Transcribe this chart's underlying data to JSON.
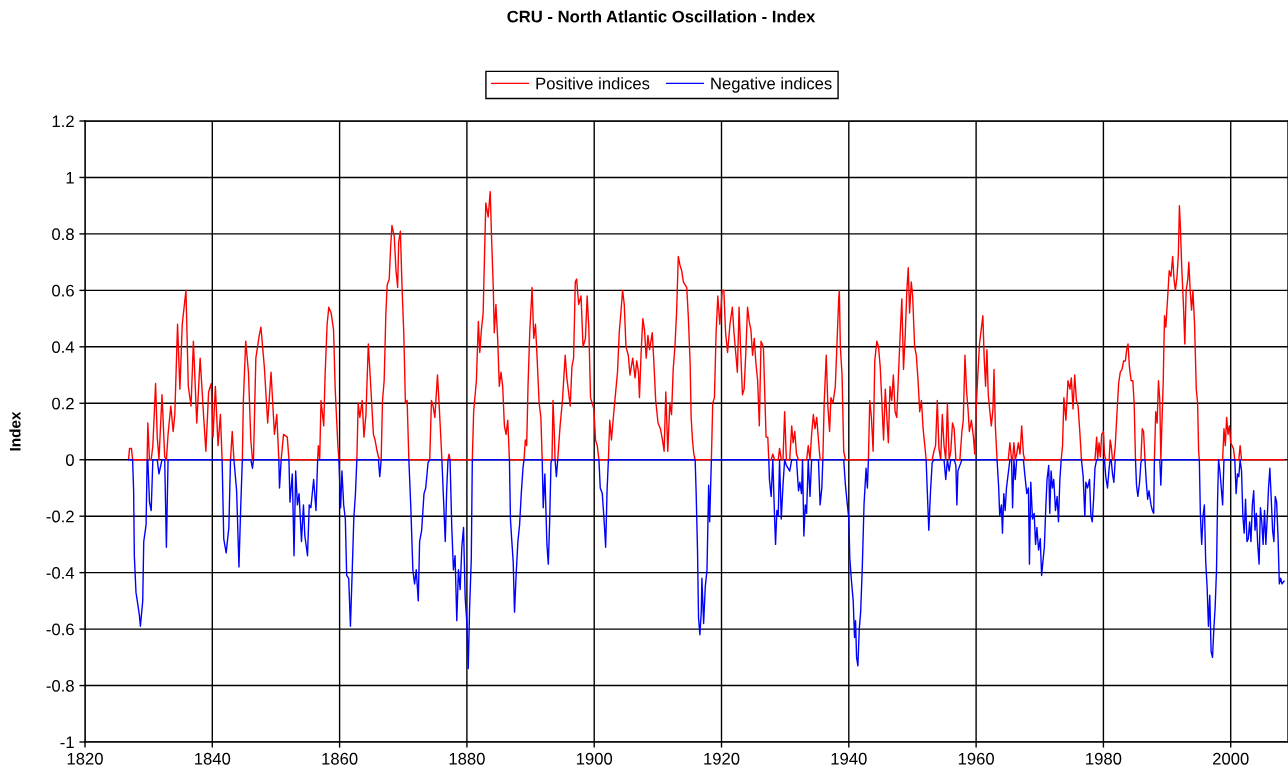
{
  "chart_data": {
    "type": "line",
    "title": "CRU - North Atlantic Oscillation - Index",
    "ylabel": "Index",
    "xlim": [
      1820,
      2009
    ],
    "xticks": [
      1820,
      1840,
      1860,
      1880,
      1900,
      1920,
      1940,
      1960,
      1980,
      2000
    ],
    "ylim": [
      -1,
      1.2
    ],
    "yticks": [
      -1,
      -0.8,
      -0.6,
      -0.4,
      -0.2,
      0,
      0.2,
      0.4,
      0.6,
      0.8,
      1,
      1.2
    ],
    "grid": true,
    "legend": "top",
    "x": [
      1826.84,
      1827.0,
      1827.3,
      1827.48,
      1827.64,
      1827.75,
      1828.01,
      1828.54,
      1828.7,
      1829.07,
      1829.23,
      1829.6,
      1829.76,
      1829.87,
      1830.13,
      1830.4,
      1830.66,
      1831.09,
      1831.35,
      1831.62,
      1832.1,
      1832.52,
      1832.79,
      1833.05,
      1833.48,
      1833.85,
      1834.11,
      1834.54,
      1834.91,
      1835.28,
      1835.86,
      1836.23,
      1836.66,
      1837.03,
      1837.56,
      1838.09,
      1838.62,
      1838.99,
      1839.42,
      1839.84,
      1840.11,
      1840.48,
      1840.9,
      1841.27,
      1841.54,
      1841.8,
      1842.18,
      1842.6,
      1842.86,
      1843.13,
      1843.4,
      1843.82,
      1844.19,
      1844.46,
      1844.72,
      1844.88,
      1845.25,
      1845.68,
      1846.05,
      1846.31,
      1846.47,
      1846.84,
      1847.37,
      1847.64,
      1848.17,
      1848.7,
      1849.23,
      1849.76,
      1850.13,
      1850.45,
      1850.56,
      1850.82,
      1851.19,
      1851.78,
      1852.04,
      1852.2,
      1852.57,
      1852.84,
      1853.1,
      1853.37,
      1853.63,
      1854.01,
      1854.32,
      1854.54,
      1854.96,
      1855.23,
      1855.49,
      1855.92,
      1856.29,
      1856.55,
      1856.66,
      1856.87,
      1857.08,
      1857.51,
      1857.72,
      1858.04,
      1858.3,
      1858.67,
      1859.05,
      1859.31,
      1859.58,
      1859.73,
      1859.89,
      1860.16,
      1860.37,
      1860.64,
      1860.9,
      1861.11,
      1861.43,
      1861.7,
      1861.96,
      1862.23,
      1862.49,
      1862.71,
      1862.92,
      1863.18,
      1863.55,
      1863.82,
      1864.14,
      1864.51,
      1864.77,
      1865.04,
      1865.31,
      1865.57,
      1865.89,
      1866.1,
      1866.31,
      1866.53,
      1866.74,
      1867.0,
      1867.27,
      1867.48,
      1867.8,
      1868.01,
      1868.22,
      1868.59,
      1868.86,
      1869.12,
      1869.28,
      1869.55,
      1869.81,
      1870.08,
      1870.34,
      1870.61,
      1870.88,
      1871.19,
      1871.51,
      1871.78,
      1872.04,
      1872.36,
      1872.57,
      1872.89,
      1873.26,
      1873.53,
      1873.9,
      1874.16,
      1874.43,
      1874.69,
      1874.96,
      1875.38,
      1875.65,
      1875.92,
      1876.07,
      1876.29,
      1876.6,
      1876.82,
      1877.03,
      1877.19,
      1877.35,
      1877.61,
      1877.88,
      1878.14,
      1878.41,
      1878.67,
      1878.94,
      1879.2,
      1879.47,
      1879.73,
      1880.0,
      1880.21,
      1880.42,
      1880.69,
      1880.85,
      1881.06,
      1881.49,
      1881.8,
      1882.02,
      1882.28,
      1882.55,
      1882.71,
      1882.97,
      1883.34,
      1883.66,
      1883.87,
      1884.14,
      1884.3,
      1884.56,
      1884.83,
      1885.09,
      1885.36,
      1885.62,
      1885.89,
      1886.15,
      1886.42,
      1886.68,
      1886.84,
      1887.06,
      1887.27,
      1887.48,
      1887.75,
      1888.01,
      1888.28,
      1888.54,
      1888.81,
      1888.97,
      1889.18,
      1889.39,
      1889.6,
      1889.87,
      1890.24,
      1890.5,
      1890.77,
      1891.03,
      1891.35,
      1891.62,
      1891.83,
      1891.99,
      1892.25,
      1892.57,
      1892.79,
      1893.0,
      1893.21,
      1893.37,
      1893.53,
      1893.74,
      1893.85,
      1894.06,
      1894.27,
      1894.64,
      1895.01,
      1895.44,
      1895.7,
      1895.97,
      1896.23,
      1896.5,
      1896.76,
      1897.03,
      1897.24,
      1897.56,
      1897.93,
      1898.25,
      1898.62,
      1898.89,
      1899.15,
      1899.42,
      1899.68,
      1899.95,
      1900.21,
      1900.48,
      1900.74,
      1900.95,
      1901.27,
      1901.54,
      1901.8,
      1902.02,
      1902.23,
      1902.44,
      1902.71,
      1902.97,
      1903.29,
      1903.66,
      1903.93,
      1904.19,
      1904.46,
      1904.72,
      1904.99,
      1905.36,
      1905.62,
      1906.05,
      1906.42,
      1906.68,
      1906.95,
      1907.11,
      1907.37,
      1907.64,
      1907.9,
      1908.17,
      1908.44,
      1908.7,
      1909.12,
      1909.34,
      1909.66,
      1910.03,
      1910.4,
      1910.72,
      1910.98,
      1911.25,
      1911.56,
      1911.88,
      1912.15,
      1912.41,
      1912.68,
      1912.94,
      1913.21,
      1913.47,
      1913.74,
      1914.01,
      1914.54,
      1914.8,
      1915.07,
      1915.23,
      1915.44,
      1915.65,
      1915.86,
      1916.02,
      1916.23,
      1916.39,
      1916.6,
      1916.82,
      1916.92,
      1917.19,
      1917.45,
      1917.72,
      1917.98,
      1918.14,
      1918.41,
      1918.62,
      1918.89,
      1919.15,
      1919.42,
      1919.73,
      1920.11,
      1920.37,
      1920.64,
      1920.95,
      1921.33,
      1921.7,
      1921.96,
      1922.23,
      1922.49,
      1922.76,
      1923.02,
      1923.29,
      1923.55,
      1923.82,
      1924.09,
      1924.35,
      1924.62,
      1924.88,
      1925.15,
      1925.41,
      1925.68,
      1925.94,
      1926.21,
      1926.58,
      1926.84,
      1927.0,
      1927.27,
      1927.43,
      1927.53,
      1927.8,
      1928.06,
      1928.33,
      1928.49,
      1928.7,
      1928.91,
      1929.12,
      1929.39,
      1929.66,
      1929.92,
      1930.19,
      1930.45,
      1930.72,
      1931.03,
      1931.25,
      1931.51,
      1931.78,
      1932.1,
      1932.31,
      1932.57,
      1932.73,
      1932.94,
      1933.16,
      1933.37,
      1933.63,
      1933.9,
      1934.16,
      1934.43,
      1934.69,
      1934.96,
      1935.23,
      1935.49,
      1935.76,
      1935.92,
      1936.13,
      1936.45,
      1936.71,
      1936.98,
      1937.19,
      1937.51,
      1937.88,
      1938.14,
      1938.41,
      1938.51,
      1938.67,
      1938.94,
      1939.2,
      1939.47,
      1939.73,
      1940.0,
      1940.16,
      1940.42,
      1940.69,
      1940.9,
      1941.06,
      1941.22,
      1941.43,
      1941.64,
      1941.86,
      1942.12,
      1942.39,
      1942.71,
      1942.92,
      1943.08,
      1943.29,
      1943.55,
      1943.82,
      1944.08,
      1944.4,
      1944.67,
      1944.93,
      1945.2,
      1945.46,
      1945.73,
      1946.21,
      1946.47,
      1946.74,
      1947.0,
      1947.27,
      1947.53,
      1947.8,
      1948.06,
      1948.33,
      1948.59,
      1948.86,
      1949.12,
      1949.34,
      1949.55,
      1949.81,
      1950.03,
      1950.34,
      1950.61,
      1950.88,
      1951.14,
      1951.41,
      1951.67,
      1951.94,
      1952.15,
      1952.31,
      1952.57,
      1952.84,
      1953.1,
      1953.37,
      1953.63,
      1953.9,
      1954.16,
      1954.43,
      1954.69,
      1954.96,
      1955.23,
      1955.49,
      1955.76,
      1956.02,
      1956.29,
      1956.55,
      1956.82,
      1956.98,
      1957.14,
      1957.45,
      1957.77,
      1957.98,
      1958.25,
      1958.51,
      1958.73,
      1958.94,
      1959.26,
      1959.58,
      1959.79,
      1960.0,
      1960.27,
      1960.53,
      1960.8,
      1961.06,
      1961.27,
      1961.49,
      1961.7,
      1961.91,
      1962.12,
      1962.39,
      1962.65,
      1962.81,
      1963.02,
      1963.29,
      1963.55,
      1963.71,
      1963.98,
      1964.14,
      1964.35,
      1964.56,
      1964.77,
      1965.04,
      1965.31,
      1965.57,
      1965.73,
      1965.94,
      1966.15,
      1966.37,
      1966.63,
      1966.9,
      1967.16,
      1967.43,
      1967.64,
      1967.96,
      1968.22,
      1968.38,
      1968.59,
      1968.86,
      1969.12,
      1969.34,
      1969.55,
      1969.81,
      1970.08,
      1970.29,
      1970.5,
      1970.72,
      1970.93,
      1971.14,
      1971.41,
      1971.57,
      1971.78,
      1971.99,
      1972.2,
      1972.47,
      1972.73,
      1972.94,
      1973.16,
      1973.37,
      1973.58,
      1973.79,
      1974.11,
      1974.43,
      1974.75,
      1974.96,
      1975.23,
      1975.49,
      1975.76,
      1976.02,
      1976.29,
      1976.55,
      1976.82,
      1977.08,
      1977.24,
      1977.51,
      1977.82,
      1978.04,
      1978.25,
      1978.46,
      1978.67,
      1978.94,
      1979.1,
      1979.31,
      1979.52,
      1979.73,
      1980.0,
      1980.16,
      1980.37,
      1980.64,
      1980.9,
      1981.06,
      1981.22,
      1981.43,
      1981.64,
      1981.86,
      1982.12,
      1982.39,
      1982.65,
      1982.92,
      1983.18,
      1983.45,
      1983.66,
      1983.87,
      1984.08,
      1984.35,
      1984.62,
      1984.83,
      1985.04,
      1985.2,
      1985.41,
      1985.68,
      1985.89,
      1986.1,
      1986.31,
      1986.53,
      1986.74,
      1986.95,
      1987.16,
      1987.48,
      1987.69,
      1987.9,
      1988.01,
      1988.22,
      1988.44,
      1988.65,
      1988.86,
      1989.02,
      1989.18,
      1989.39,
      1989.6,
      1989.81,
      1990.08,
      1990.34,
      1990.61,
      1990.88,
      1991.09,
      1991.3,
      1991.57,
      1991.78,
      1991.94,
      1992.1,
      1992.31,
      1992.57,
      1992.79,
      1993.0,
      1993.26,
      1993.42,
      1993.63,
      1993.85,
      1994.06,
      1994.32,
      1994.59,
      1994.8,
      1994.96,
      1995.07,
      1995.23,
      1995.44,
      1995.65,
      1995.86,
      1996.07,
      1996.29,
      1996.5,
      1996.71,
      1996.92,
      1997.14,
      1997.35,
      1997.56,
      1997.77,
      1997.93,
      1998.09,
      1998.3,
      1998.52,
      1998.73,
      1998.94,
      1999.15,
      1999.36,
      1999.58,
      1999.79,
      2000.0,
      2000.21,
      2000.42,
      2000.64,
      2000.85,
      2001.06,
      2001.27,
      2001.48,
      2001.7,
      2001.91,
      2002.12,
      2002.33,
      2002.55,
      2002.76,
      2002.97,
      2003.18,
      2003.4,
      2003.61,
      2003.82,
      2004.03,
      2004.24,
      2004.46,
      2004.67,
      2004.88,
      2005.09,
      2005.31,
      2005.52,
      2005.73,
      2005.94,
      2006.15,
      2006.37,
      2006.58,
      2006.79,
      2007.0,
      2007.21,
      2007.43,
      2007.64,
      2007.85,
      2008.06,
      2008.38
    ],
    "series": [
      {
        "name": "Positive indices",
        "color": "#ff0000",
        "values": [
          0,
          0.04,
          0.04,
          0,
          0,
          0,
          0,
          0,
          0,
          0,
          0,
          0,
          0,
          0.13,
          0,
          0,
          0.05,
          0.27,
          0.08,
          0,
          0.23,
          0.01,
          0,
          0.09,
          0.19,
          0.1,
          0.16,
          0.48,
          0.25,
          0.48,
          0.6,
          0.26,
          0.19,
          0.42,
          0.13,
          0.36,
          0.16,
          0.03,
          0.24,
          0.27,
          0.08,
          0.26,
          0.05,
          0.16,
          0,
          0,
          0,
          0,
          0,
          0.1,
          0,
          0,
          0,
          0,
          0,
          0.21,
          0.42,
          0.31,
          0.07,
          0,
          0,
          0.36,
          0.44,
          0.47,
          0.33,
          0.13,
          0.31,
          0.09,
          0.16,
          0,
          0,
          0,
          0.09,
          0.08,
          0,
          0,
          0,
          0,
          0,
          0,
          0,
          0,
          0,
          0,
          0,
          0,
          0,
          0,
          0,
          0,
          0.05,
          0,
          0.21,
          0.12,
          0.3,
          0.48,
          0.54,
          0.52,
          0.46,
          0.25,
          0.12,
          0.05,
          0,
          0,
          0,
          0,
          0,
          0,
          0,
          0,
          0,
          0,
          0,
          0,
          0.2,
          0.15,
          0.21,
          0.08,
          0.16,
          0.41,
          0.31,
          0.2,
          0.09,
          0.07,
          0.03,
          0.01,
          0,
          0,
          0.21,
          0.28,
          0.52,
          0.62,
          0.64,
          0.75,
          0.83,
          0.79,
          0.67,
          0.61,
          0.77,
          0.81,
          0.61,
          0.45,
          0.2,
          0.21,
          0,
          0,
          0,
          0,
          0,
          0,
          0,
          0,
          0,
          0,
          0,
          0,
          0.21,
          0.19,
          0.15,
          0.3,
          0.19,
          0.07,
          0,
          0,
          0,
          0,
          0,
          0.02,
          0,
          0,
          0,
          0,
          0,
          0,
          0,
          0,
          0,
          0,
          0,
          0,
          0,
          0,
          0,
          0.17,
          0.28,
          0.49,
          0.38,
          0.46,
          0.52,
          0.67,
          0.91,
          0.86,
          0.95,
          0.79,
          0.61,
          0.45,
          0.55,
          0.43,
          0.26,
          0.31,
          0.26,
          0.12,
          0.09,
          0.14,
          0,
          0,
          0,
          0,
          0,
          0,
          0,
          0,
          0,
          0,
          0,
          0.07,
          0.05,
          0.26,
          0.45,
          0.61,
          0.43,
          0.48,
          0.36,
          0.2,
          0.15,
          0,
          0,
          0,
          0,
          0,
          0,
          0,
          0,
          0.21,
          0.09,
          0,
          0,
          0,
          0.12,
          0.21,
          0.37,
          0.29,
          0.24,
          0.19,
          0.33,
          0.36,
          0.63,
          0.64,
          0.55,
          0.58,
          0.4,
          0.43,
          0.58,
          0.47,
          0.22,
          0.2,
          0.18,
          0.07,
          0.05,
          0,
          0,
          0,
          0,
          0,
          0,
          0,
          0.14,
          0.07,
          0.14,
          0.22,
          0.31,
          0.45,
          0.52,
          0.6,
          0.55,
          0.4,
          0.37,
          0.3,
          0.36,
          0.29,
          0.35,
          0.31,
          0.22,
          0.38,
          0.5,
          0.46,
          0.36,
          0.44,
          0.39,
          0.45,
          0.36,
          0.21,
          0.13,
          0.11,
          0.07,
          0.03,
          0.24,
          0.03,
          0.2,
          0.16,
          0.32,
          0.4,
          0.52,
          0.72,
          0.69,
          0.67,
          0.63,
          0.61,
          0.5,
          0.34,
          0.15,
          0.07,
          0.02,
          0,
          0,
          0,
          0,
          0,
          0,
          0,
          0,
          0,
          0,
          0,
          0,
          0,
          0.2,
          0.22,
          0.45,
          0.58,
          0.48,
          0.6,
          0.6,
          0.45,
          0.38,
          0.48,
          0.54,
          0.45,
          0.38,
          0.31,
          0.54,
          0.38,
          0.23,
          0.25,
          0.38,
          0.54,
          0.49,
          0.46,
          0.37,
          0.43,
          0.34,
          0.28,
          0.12,
          0.42,
          0.4,
          0.2,
          0.08,
          0.08,
          0,
          0,
          0,
          0.02,
          0,
          0,
          0,
          0,
          0.04,
          0,
          0,
          0.17,
          0,
          0,
          0,
          0.12,
          0.06,
          0.1,
          0.02,
          0,
          0,
          0,
          0,
          0,
          0,
          0,
          0.05,
          0,
          0.09,
          0.16,
          0.11,
          0.15,
          0.07,
          0,
          0,
          0,
          0.2,
          0.37,
          0.19,
          0.1,
          0.22,
          0.2,
          0.26,
          0.41,
          0.57,
          0.6,
          0.4,
          0.3,
          0.03,
          0,
          0,
          0,
          0,
          0,
          0,
          0,
          0,
          0,
          0,
          0,
          0,
          0,
          0,
          0,
          0,
          0,
          0.21,
          0.15,
          0.03,
          0.35,
          0.42,
          0.4,
          0.33,
          0.2,
          0.07,
          0.25,
          0.06,
          0.26,
          0.21,
          0.3,
          0.17,
          0.15,
          0.3,
          0.44,
          0.57,
          0.32,
          0.44,
          0.6,
          0.68,
          0.52,
          0.63,
          0.58,
          0.4,
          0.37,
          0.28,
          0.17,
          0.21,
          0.11,
          0.05,
          0,
          0,
          0,
          0,
          0,
          0.03,
          0.05,
          0.21,
          0.04,
          0,
          0.16,
          0.05,
          0,
          0.2,
          0,
          0.03,
          0.13,
          0.11,
          0,
          0,
          0,
          0,
          0.1,
          0.14,
          0.37,
          0.24,
          0.18,
          0.1,
          0.14,
          0.08,
          0.02,
          0.18,
          0.3,
          0.41,
          0.46,
          0.51,
          0.36,
          0.26,
          0.39,
          0.23,
          0.18,
          0.12,
          0.18,
          0.32,
          0.12,
          0,
          0,
          0,
          0,
          0,
          0,
          0,
          0,
          0,
          0.06,
          0,
          0,
          0.06,
          0,
          0.02,
          0.06,
          0.02,
          0.12,
          0.02,
          0,
          0,
          0,
          0,
          0,
          0,
          0,
          0,
          0,
          0,
          0,
          0,
          0,
          0,
          0,
          0,
          0,
          0,
          0,
          0,
          0,
          0,
          0,
          0,
          0,
          0,
          0.05,
          0.22,
          0.14,
          0.28,
          0.25,
          0.29,
          0.18,
          0.3,
          0.21,
          0.19,
          0.1,
          0,
          0,
          0,
          0,
          0,
          0,
          0,
          0,
          0,
          0,
          0.08,
          0,
          0.06,
          0.01,
          0.09,
          0.1,
          0.02,
          0,
          0,
          0,
          0.07,
          0.05,
          0,
          0,
          0.05,
          0.16,
          0.27,
          0.31,
          0.32,
          0.35,
          0.35,
          0.39,
          0.41,
          0.33,
          0.28,
          0.28,
          0.2,
          0,
          0,
          0,
          0,
          0,
          0.11,
          0.1,
          0,
          0,
          0,
          0,
          0,
          0,
          0,
          0,
          0.17,
          0.13,
          0.28,
          0.21,
          0,
          0.12,
          0.27,
          0.51,
          0.47,
          0.57,
          0.67,
          0.65,
          0.72,
          0.64,
          0.6,
          0.65,
          0.73,
          0.9,
          0.82,
          0.68,
          0.55,
          0.41,
          0.6,
          0.64,
          0.7,
          0.6,
          0.53,
          0.6,
          0.48,
          0.25,
          0.2,
          0.03,
          0,
          0,
          0,
          0,
          0,
          0,
          0,
          0,
          0,
          0,
          0,
          0,
          0,
          0,
          0,
          0,
          0,
          0,
          0,
          0.11,
          0.05,
          0.15,
          0.09,
          0.12,
          0.06,
          0.05,
          0.04,
          0,
          0,
          0,
          0,
          0.05,
          0,
          0,
          0,
          0,
          0,
          0,
          0,
          0,
          0,
          0,
          0,
          0,
          0,
          0,
          0,
          0,
          0,
          0,
          0,
          0,
          0,
          0,
          0,
          0,
          0,
          0,
          0,
          0,
          0,
          0,
          0,
          0
        ]
      },
      {
        "name": "Negative indices",
        "color": "#0000ff",
        "values": [
          0,
          0,
          0,
          0,
          -0.11,
          -0.34,
          -0.47,
          -0.55,
          -0.59,
          -0.5,
          -0.29,
          -0.23,
          0,
          0,
          -0.15,
          -0.18,
          0,
          0,
          0,
          -0.05,
          0,
          0,
          -0.31,
          0,
          0,
          0,
          0,
          0,
          0,
          0,
          0,
          0,
          0,
          0,
          0,
          0,
          0,
          0,
          0,
          0,
          0,
          0,
          0,
          0,
          0,
          -0.28,
          -0.33,
          -0.24,
          0,
          0,
          0,
          -0.11,
          -0.38,
          -0.17,
          0,
          0,
          0,
          0,
          0,
          -0.03,
          0,
          0,
          0,
          0,
          0,
          0,
          0,
          0,
          0,
          0,
          -0.1,
          0,
          0,
          0,
          0,
          -0.15,
          -0.05,
          -0.34,
          -0.04,
          -0.16,
          -0.12,
          -0.29,
          -0.16,
          -0.27,
          -0.34,
          -0.16,
          -0.17,
          -0.07,
          -0.18,
          0,
          0,
          0,
          0,
          0,
          0,
          0,
          0,
          0,
          0,
          0,
          0,
          0,
          0,
          -0.17,
          -0.04,
          -0.16,
          -0.21,
          -0.41,
          -0.42,
          -0.59,
          -0.41,
          -0.21,
          -0.12,
          0,
          0,
          0,
          0,
          0,
          0,
          0,
          0,
          0,
          0,
          0,
          0,
          0,
          -0.06,
          0,
          0,
          0,
          0,
          0,
          0,
          0,
          0,
          0,
          0,
          0,
          0,
          0,
          0,
          0,
          0,
          0,
          0,
          -0.17,
          -0.39,
          -0.44,
          -0.39,
          -0.5,
          -0.29,
          -0.25,
          -0.12,
          -0.1,
          -0.01,
          0,
          0,
          0,
          0,
          0,
          0,
          0,
          0,
          -0.12,
          -0.29,
          -0.11,
          0,
          0,
          0,
          -0.23,
          -0.39,
          -0.34,
          -0.57,
          -0.39,
          -0.46,
          -0.31,
          -0.24,
          -0.49,
          -0.58,
          -0.74,
          -0.53,
          -0.35,
          0,
          0,
          0,
          0,
          0,
          0,
          0,
          0,
          0,
          0,
          0,
          0,
          0,
          0,
          0,
          0,
          0,
          0,
          0,
          0,
          0,
          0,
          0,
          -0.21,
          -0.29,
          -0.36,
          -0.54,
          -0.4,
          -0.29,
          -0.23,
          -0.12,
          -0.03,
          0,
          0,
          0,
          0,
          0,
          0,
          0,
          0,
          0,
          0,
          0,
          0,
          -0.17,
          -0.05,
          -0.3,
          -0.37,
          -0.22,
          -0.01,
          0,
          0,
          0,
          0,
          -0.06,
          0,
          0,
          0,
          0,
          0,
          0,
          0,
          0,
          0,
          0,
          0,
          0,
          0,
          0,
          0,
          0,
          0,
          0,
          0,
          0,
          0,
          0,
          0,
          -0.1,
          -0.12,
          -0.21,
          -0.31,
          -0.11,
          0,
          0,
          0,
          0,
          0,
          0,
          0,
          0,
          0,
          0,
          0,
          0,
          0,
          0,
          0,
          0,
          0,
          0,
          0,
          0,
          0,
          0,
          0,
          0,
          0,
          0,
          0,
          0,
          0,
          0,
          0,
          0,
          0,
          0,
          0,
          0,
          0,
          0,
          0,
          0,
          0,
          0,
          0,
          0,
          0,
          0,
          0,
          0,
          0,
          -0.12,
          -0.32,
          -0.56,
          -0.62,
          -0.54,
          -0.42,
          -0.58,
          -0.45,
          -0.39,
          -0.09,
          -0.22,
          0,
          0,
          0,
          0,
          0,
          0,
          0,
          0,
          0,
          0,
          0,
          0,
          0,
          0,
          0,
          0,
          0,
          0,
          0,
          0,
          0,
          0,
          0,
          0,
          0,
          0,
          0,
          0,
          0,
          0,
          0,
          0,
          0,
          0,
          -0.07,
          -0.13,
          0,
          -0.2,
          -0.3,
          -0.18,
          -0.2,
          0,
          -0.21,
          -0.09,
          0,
          -0.02,
          -0.03,
          -0.04,
          0,
          0,
          0,
          0,
          -0.11,
          -0.08,
          -0.12,
          0,
          -0.27,
          -0.16,
          -0.19,
          0,
          -0.13,
          0,
          0,
          0,
          0,
          0,
          -0.16,
          -0.1,
          0,
          0,
          0,
          0,
          0,
          0,
          0,
          0,
          0,
          0,
          0,
          0,
          0,
          0,
          -0.09,
          -0.15,
          -0.21,
          -0.35,
          -0.43,
          -0.5,
          -0.63,
          -0.57,
          -0.7,
          -0.73,
          -0.6,
          -0.54,
          -0.38,
          -0.16,
          -0.03,
          -0.1,
          0,
          0,
          0,
          0,
          0,
          0,
          0,
          0,
          0,
          0,
          0,
          0,
          0,
          0,
          0,
          0,
          0,
          0,
          0,
          0,
          0,
          0,
          0,
          0,
          0,
          0,
          0,
          0,
          0,
          0,
          0,
          0,
          0,
          0,
          0,
          -0.1,
          -0.25,
          -0.11,
          -0.01,
          0,
          0,
          0,
          0,
          0,
          0,
          0,
          -0.07,
          0,
          -0.04,
          0,
          0,
          0,
          -0.02,
          -0.16,
          -0.04,
          -0.02,
          0,
          0,
          0,
          0,
          0,
          0,
          0,
          0,
          0,
          0,
          0,
          0,
          0,
          0,
          0,
          0,
          0,
          0,
          0,
          0,
          0,
          0,
          0,
          0,
          -0.1,
          -0.2,
          -0.16,
          -0.26,
          -0.12,
          -0.18,
          -0.1,
          -0.05,
          0,
          0,
          -0.17,
          0,
          -0.07,
          0,
          0,
          0,
          0,
          0,
          -0.05,
          -0.12,
          -0.1,
          -0.37,
          -0.08,
          -0.21,
          -0.19,
          -0.3,
          -0.24,
          -0.32,
          -0.28,
          -0.41,
          -0.36,
          -0.31,
          -0.18,
          -0.07,
          -0.02,
          -0.19,
          -0.04,
          -0.1,
          -0.07,
          -0.18,
          -0.13,
          -0.22,
          -0.07,
          0,
          0,
          0,
          0,
          0,
          0,
          0,
          0,
          0,
          0,
          0,
          0,
          0,
          -0.06,
          -0.2,
          -0.08,
          -0.1,
          -0.07,
          -0.2,
          -0.22,
          -0.14,
          -0.03,
          0,
          0,
          0,
          0,
          0,
          0,
          0,
          -0.06,
          -0.1,
          -0.03,
          0,
          0,
          -0.05,
          -0.08,
          0,
          0,
          0,
          0,
          0,
          0,
          0,
          0,
          0,
          0,
          0,
          0,
          0,
          0,
          -0.09,
          -0.13,
          -0.08,
          -0.01,
          0,
          0,
          0,
          -0.08,
          -0.14,
          -0.11,
          -0.16,
          -0.18,
          -0.19,
          0,
          0,
          0,
          0,
          0,
          -0.09,
          0,
          0,
          0,
          0,
          0,
          0,
          0,
          0,
          0,
          0,
          0,
          0,
          0,
          0,
          0,
          0,
          0,
          0,
          0,
          0,
          0,
          0,
          0,
          0,
          0,
          0,
          0,
          0,
          -0.19,
          -0.3,
          -0.2,
          -0.16,
          -0.36,
          -0.45,
          -0.59,
          -0.48,
          -0.68,
          -0.7,
          -0.6,
          -0.52,
          -0.39,
          -0.15,
          0,
          -0.04,
          -0.1,
          -0.16,
          0,
          0,
          0,
          0,
          0,
          0,
          0,
          0,
          0,
          -0.12,
          -0.05,
          -0.06,
          0,
          -0.04,
          -0.2,
          -0.26,
          -0.14,
          -0.29,
          -0.28,
          -0.22,
          -0.29,
          -0.16,
          -0.11,
          -0.25,
          -0.19,
          -0.3,
          -0.37,
          -0.17,
          -0.22,
          -0.3,
          -0.18,
          -0.3,
          -0.21,
          -0.1,
          -0.03,
          -0.14,
          -0.25,
          -0.29,
          -0.13,
          -0.15,
          -0.27,
          -0.44,
          -0.42,
          -0.44,
          -0.43
        ]
      }
    ]
  }
}
